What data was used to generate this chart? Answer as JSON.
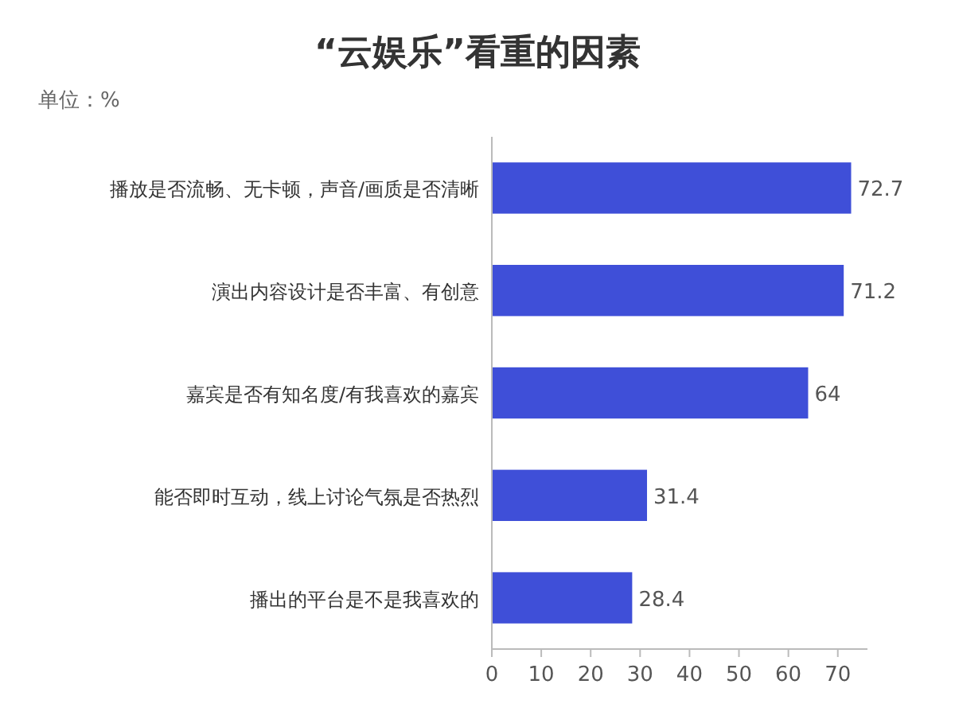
{
  "chart_data": {
    "type": "bar",
    "orientation": "horizontal",
    "title": "“云娱乐”看重的因素",
    "annotations": [
      "单位：%"
    ],
    "categories": [
      "播放是否流畅、无卡顿，声音/画质是否清晰",
      "演出内容设计是否丰富、有创意",
      "嘉宾是否有知名度/有我喜欢的嘉宾",
      "能否即时互动，线上讨论气氛是否热烈",
      "播出的平台是不是我喜欢的"
    ],
    "values": [
      72.7,
      71.2,
      64,
      31.4,
      28.4
    ],
    "color": "#3f4fd8",
    "xlim": [
      0,
      76
    ],
    "xticks": [
      0,
      10,
      20,
      30,
      40,
      50,
      60,
      70
    ],
    "data_labels": true
  }
}
